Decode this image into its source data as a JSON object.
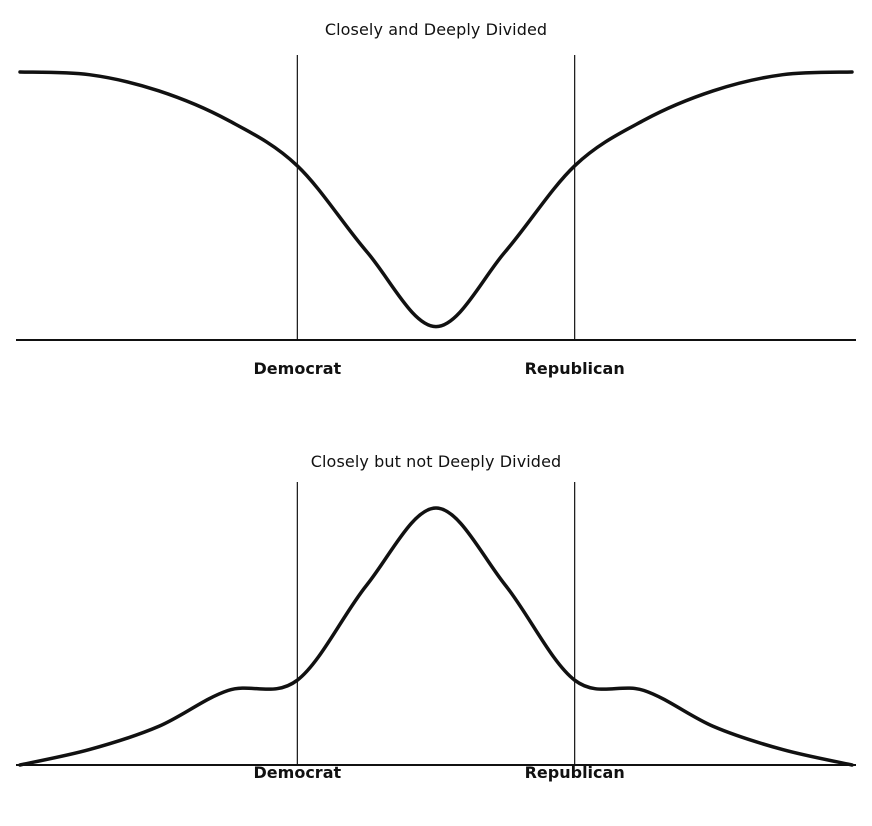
{
  "chart_data": [
    {
      "type": "line",
      "title": "Closely and Deeply Divided",
      "xlabel": "",
      "ylabel": "",
      "shape": "u-shaped (bimodal) distribution",
      "xlim": [
        -3,
        3
      ],
      "ylim": [
        0,
        1
      ],
      "markers": [
        {
          "label": "Democrat",
          "x": -1
        },
        {
          "label": "Republican",
          "x": 1
        }
      ],
      "series": [
        {
          "x": [
            -3,
            -2.5,
            -2,
            -1.5,
            -1,
            -0.5,
            0,
            0.5,
            1,
            1.5,
            2,
            2.5,
            3
          ],
          "y": [
            1.0,
            0.99,
            0.93,
            0.82,
            0.65,
            0.33,
            0.05,
            0.33,
            0.65,
            0.82,
            0.93,
            0.99,
            1.0
          ]
        }
      ],
      "axes_visible": {
        "x": true,
        "y": false
      },
      "grid": false,
      "legend": false
    },
    {
      "type": "line",
      "title": "Closely but not Deeply Divided",
      "xlabel": "",
      "ylabel": "",
      "shape": "bell-shaped (unimodal) distribution",
      "xlim": [
        -3,
        3
      ],
      "ylim": [
        0,
        1
      ],
      "markers": [
        {
          "label": "Democrat",
          "x": -1
        },
        {
          "label": "Republican",
          "x": 1
        }
      ],
      "series": [
        {
          "x": [
            -3,
            -2.5,
            -2,
            -1.5,
            -1,
            -0.5,
            0,
            0.5,
            1,
            1.5,
            2,
            2.5,
            3
          ],
          "y": [
            0.0,
            0.06,
            0.15,
            0.29,
            0.33,
            0.7,
            1.0,
            0.7,
            0.33,
            0.29,
            0.15,
            0.06,
            0.0
          ]
        }
      ],
      "axes_visible": {
        "x": true,
        "y": false
      },
      "grid": false,
      "legend": false
    }
  ],
  "colors": {
    "line": "#111111",
    "background": "#ffffff"
  }
}
